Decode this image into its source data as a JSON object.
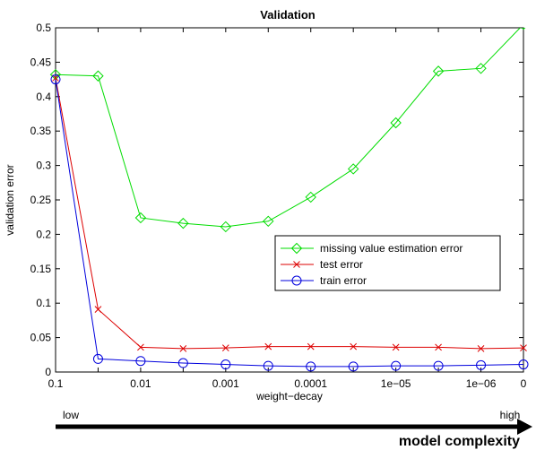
{
  "chart_data": {
    "type": "line",
    "title": "Validation",
    "xlabel": "weight−decay",
    "ylabel": "validation error",
    "x_tick_labels": [
      "0.1",
      "0.01",
      "0.001",
      "0.0001",
      "1e−05",
      "1e−06",
      "0"
    ],
    "y_ticks": [
      0,
      0.05,
      0.1,
      0.15,
      0.2,
      0.25,
      0.3,
      0.35,
      0.4,
      0.45,
      0.5
    ],
    "y_tick_labels": [
      "0",
      "0.05",
      "0.1",
      "0.15",
      "0.2",
      "0.25",
      "0.3",
      "0.35",
      "0.4",
      "0.45",
      "0.5"
    ],
    "ylim": [
      0,
      0.5
    ],
    "x": [
      "0.1",
      "0.0316",
      "0.01",
      "0.00316",
      "0.001",
      "0.000316",
      "0.0001",
      "3.16e-05",
      "1e-05",
      "3.16e-06",
      "1e-06",
      "0"
    ],
    "grid": false,
    "legend_position": "center-right",
    "series": [
      {
        "name": "missing value estimation error",
        "color": "#00dd00",
        "marker": "diamond",
        "values": [
          0.432,
          0.43,
          0.224,
          0.216,
          0.211,
          0.219,
          0.254,
          0.295,
          0.362,
          0.437,
          0.441,
          0.505
        ]
      },
      {
        "name": "test error",
        "color": "#dd0000",
        "marker": "x",
        "values": [
          0.427,
          0.091,
          0.036,
          0.034,
          0.035,
          0.037,
          0.037,
          0.037,
          0.036,
          0.036,
          0.034,
          0.035
        ]
      },
      {
        "name": "train error",
        "color": "#0000dd",
        "marker": "circle",
        "values": [
          0.425,
          0.019,
          0.016,
          0.013,
          0.011,
          0.009,
          0.008,
          0.008,
          0.009,
          0.009,
          0.01,
          0.011
        ]
      }
    ],
    "footer": {
      "low_label": "low",
      "high_label": "high",
      "axis_label": "model complexity"
    }
  }
}
